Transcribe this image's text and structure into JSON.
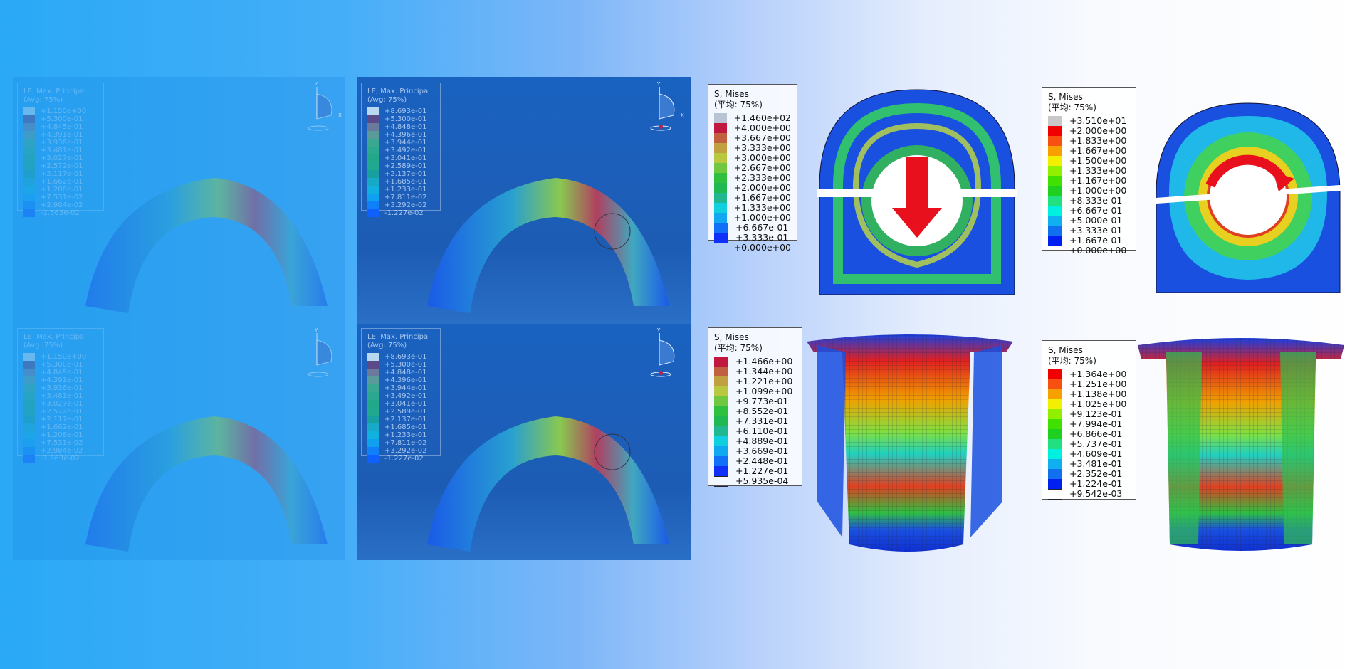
{
  "left_panels": {
    "le_a": {
      "title": "LE, Max. Principal",
      "subtitle": "(Avg: 75%)",
      "values": [
        "+1.150e+00",
        "+5.300e-01",
        "+4.845e-01",
        "+4.391e-01",
        "+3.936e-01",
        "+3.481e-01",
        "+3.027e-01",
        "+2.572e-01",
        "+2.117e-01",
        "+1.662e-01",
        "+1.208e-01",
        "+7.531e-02",
        "+2.984e-02",
        "-1.563e-02"
      ]
    },
    "le_b": {
      "title": "LE, Max. Principal",
      "subtitle": "(Avg: 75%)",
      "values": [
        "+8.693e-01",
        "+5.300e-01",
        "+4.848e-01",
        "+4.396e-01",
        "+3.944e-01",
        "+3.492e-01",
        "+3.041e-01",
        "+2.589e-01",
        "+2.137e-01",
        "+1.685e-01",
        "+1.233e-01",
        "+7.811e-02",
        "+3.292e-02",
        "-1.227e-02"
      ]
    },
    "le_colors": [
      "#b8d8f0",
      "#5a4a8a",
      "#6a7a9a",
      "#5a9a9a",
      "#3aa890",
      "#2aa890",
      "#20a888",
      "#20a890",
      "#18a0a0",
      "#18a8c8",
      "#10b0e0",
      "#10a0f0",
      "#1080f8",
      "#1060ff"
    ],
    "axis_labels": {
      "y": "Y",
      "x": "X"
    }
  },
  "mises_legends": [
    {
      "title": "S, Mises",
      "subtitle": "(平均: 75%)",
      "values": [
        "+1.460e+02",
        "+4.000e+00",
        "+3.667e+00",
        "+3.333e+00",
        "+3.000e+00",
        "+2.667e+00",
        "+2.333e+00",
        "+2.000e+00",
        "+1.667e+00",
        "+1.333e+00",
        "+1.000e+00",
        "+6.667e-01",
        "+3.333e-01",
        "+0.000e+00"
      ],
      "colors": [
        "#b8c4d4",
        "#c01840",
        "#c06040",
        "#c0a040",
        "#b8c840",
        "#70c840",
        "#30c040",
        "#20b850",
        "#20b890",
        "#10d0e0",
        "#10a8f0",
        "#1070f8",
        "#1030f8"
      ]
    },
    {
      "title": "S, Mises",
      "subtitle": "(平均: 75%)",
      "values": [
        "+3.510e+01",
        "+2.000e+00",
        "+1.833e+00",
        "+1.667e+00",
        "+1.500e+00",
        "+1.333e+00",
        "+1.167e+00",
        "+1.000e+00",
        "+8.333e-01",
        "+6.667e-01",
        "+5.000e-01",
        "+3.333e-01",
        "+1.667e-01",
        "+0.000e+00"
      ],
      "colors": [
        "#c8c8c8",
        "#f00000",
        "#f85010",
        "#f8a000",
        "#f0f000",
        "#90f000",
        "#40e000",
        "#20d020",
        "#20e080",
        "#00f0e0",
        "#10b0f0",
        "#1070f0",
        "#0020f0"
      ]
    },
    {
      "title": "S, Mises",
      "subtitle": "(平均: 75%)",
      "values": [
        "+1.466e+00",
        "+1.344e+00",
        "+1.221e+00",
        "+1.099e+00",
        "+9.773e-01",
        "+8.552e-01",
        "+7.331e-01",
        "+6.110e-01",
        "+4.889e-01",
        "+3.669e-01",
        "+2.448e-01",
        "+1.227e-01",
        "+5.935e-04"
      ],
      "colors": [
        "#c01840",
        "#c06040",
        "#c0a040",
        "#b8c840",
        "#70c840",
        "#30c040",
        "#20b850",
        "#20b890",
        "#10d0e0",
        "#10a8f0",
        "#1070f8",
        "#1030f8"
      ]
    },
    {
      "title": "S, Mises",
      "subtitle": "(平均: 75%)",
      "values": [
        "+1.364e+00",
        "+1.251e+00",
        "+1.138e+00",
        "+1.025e+00",
        "+9.123e-01",
        "+7.994e-01",
        "+6.866e-01",
        "+5.737e-01",
        "+4.609e-01",
        "+3.481e-01",
        "+2.352e-01",
        "+1.224e-01",
        "+9.542e-03"
      ],
      "colors": [
        "#f00000",
        "#f85010",
        "#f8a000",
        "#f0f000",
        "#90f000",
        "#40e000",
        "#20d020",
        "#20e080",
        "#00f0e0",
        "#10b0f0",
        "#1070f0",
        "#0020f0"
      ]
    }
  ],
  "colors": {
    "arrow": "#e8101c",
    "model_base": "#1a50e0"
  }
}
